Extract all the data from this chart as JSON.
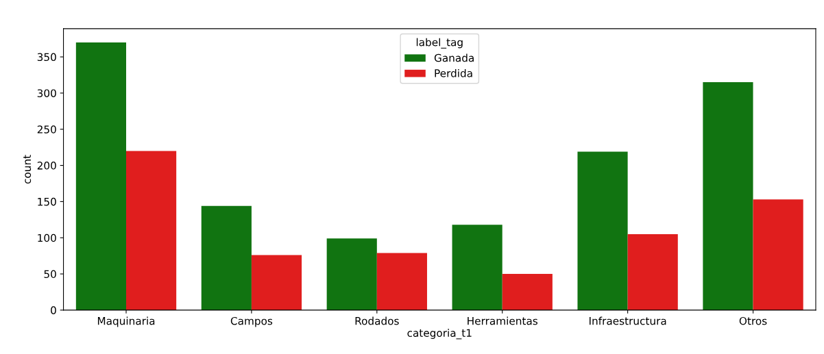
{
  "chart_data": {
    "type": "bar",
    "xlabel": "categoria_t1",
    "ylabel": "count",
    "legend_title": "label_tag",
    "categories": [
      "Maquinaria",
      "Campos",
      "Rodados",
      "Herramientas",
      "Infraestructura",
      "Otros"
    ],
    "series": [
      {
        "name": "Ganada",
        "color": "#117411",
        "values": [
          370,
          144,
          99,
          118,
          219,
          315
        ]
      },
      {
        "name": "Perdida",
        "color": "#e01e1e",
        "values": [
          220,
          76,
          79,
          50,
          105,
          153
        ]
      }
    ],
    "ylim": [
      0,
      389
    ],
    "yticks": [
      0,
      50,
      100,
      150,
      200,
      250,
      300,
      350
    ],
    "grid": false,
    "legend": "top"
  }
}
